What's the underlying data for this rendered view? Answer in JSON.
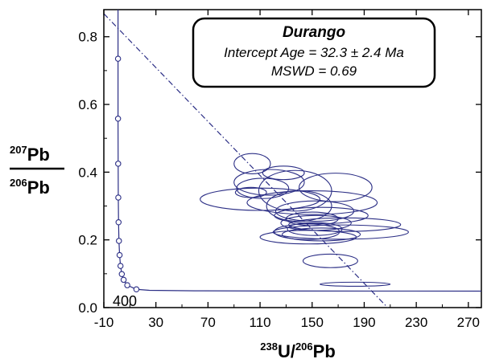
{
  "chart_data": {
    "type": "scatter",
    "subtype": "Tera-Wasserburg concordia with error ellipses",
    "annotation": {
      "title": "Durango",
      "line1": "Intercept Age = 32.3 ± 2.4 Ma",
      "line2": "MSWD = 0.69"
    },
    "xlabel": {
      "sup1": "238",
      "el1": "U/",
      "sup2": "206",
      "el2": "Pb"
    },
    "ylabel": {
      "numerator": {
        "sup": "207",
        "el": "Pb"
      },
      "denominator": {
        "sup": "206",
        "el": "Pb"
      }
    },
    "xlim": [
      -10,
      280
    ],
    "ylim": [
      0.0,
      0.88
    ],
    "xticks": [
      -10,
      30,
      70,
      110,
      150,
      190,
      230,
      270
    ],
    "yticks": [
      0.0,
      0.2,
      0.4,
      0.6,
      0.8
    ],
    "ytick_labels": [
      "0.0",
      "0.2",
      "0.4",
      "0.6",
      "0.8"
    ],
    "grid": false,
    "concordia_age_label": "400",
    "concordia_markers": [
      {
        "x": 0.9,
        "y": 0.735
      },
      {
        "x": 0.9,
        "y": 0.558
      },
      {
        "x": 1.0,
        "y": 0.425
      },
      {
        "x": 1.1,
        "y": 0.325
      },
      {
        "x": 1.3,
        "y": 0.252
      },
      {
        "x": 1.6,
        "y": 0.197
      },
      {
        "x": 2.1,
        "y": 0.155
      },
      {
        "x": 2.8,
        "y": 0.123
      },
      {
        "x": 3.8,
        "y": 0.099
      },
      {
        "x": 5.2,
        "y": 0.082
      },
      {
        "x": 8.0,
        "y": 0.066
      },
      {
        "x": 15.0,
        "y": 0.054
      }
    ],
    "regression_line": {
      "points": [
        [
          -10,
          0.868
        ],
        [
          208,
          0.0
        ]
      ],
      "style": "dash-dot"
    },
    "ellipses": [
      {
        "cx": 104,
        "cy": 0.425,
        "rx": 14,
        "ry": 0.03
      },
      {
        "cx": 128,
        "cy": 0.398,
        "rx": 16,
        "ry": 0.02
      },
      {
        "cx": 117,
        "cy": 0.37,
        "rx": 27,
        "ry": 0.038
      },
      {
        "cx": 112,
        "cy": 0.352,
        "rx": 20,
        "ry": 0.03
      },
      {
        "cx": 168,
        "cy": 0.355,
        "rx": 28,
        "ry": 0.042
      },
      {
        "cx": 103,
        "cy": 0.34,
        "rx": 12,
        "ry": 0.015
      },
      {
        "cx": 137,
        "cy": 0.345,
        "rx": 28,
        "ry": 0.06
      },
      {
        "cx": 110,
        "cy": 0.32,
        "rx": 46,
        "ry": 0.033
      },
      {
        "cx": 150,
        "cy": 0.31,
        "rx": 50,
        "ry": 0.035
      },
      {
        "cx": 140,
        "cy": 0.3,
        "rx": 25,
        "ry": 0.045
      },
      {
        "cx": 152,
        "cy": 0.285,
        "rx": 30,
        "ry": 0.03
      },
      {
        "cx": 157,
        "cy": 0.272,
        "rx": 36,
        "ry": 0.024
      },
      {
        "cx": 150,
        "cy": 0.262,
        "rx": 20,
        "ry": 0.02
      },
      {
        "cx": 153,
        "cy": 0.25,
        "rx": 27,
        "ry": 0.022
      },
      {
        "cx": 175,
        "cy": 0.245,
        "rx": 43,
        "ry": 0.02
      },
      {
        "cx": 152,
        "cy": 0.232,
        "rx": 21,
        "ry": 0.019
      },
      {
        "cx": 146,
        "cy": 0.224,
        "rx": 25,
        "ry": 0.023
      },
      {
        "cx": 172,
        "cy": 0.223,
        "rx": 52,
        "ry": 0.021
      },
      {
        "cx": 157,
        "cy": 0.216,
        "rx": 30,
        "ry": 0.019
      },
      {
        "cx": 147,
        "cy": 0.208,
        "rx": 37,
        "ry": 0.02
      },
      {
        "cx": 164,
        "cy": 0.138,
        "rx": 21,
        "ry": 0.02
      },
      {
        "cx": 183,
        "cy": 0.069,
        "rx": 27,
        "ry": 0.006
      }
    ],
    "colors": {
      "curves": "#2b2e85",
      "frame": "#000000",
      "box_border": "#000000"
    }
  }
}
